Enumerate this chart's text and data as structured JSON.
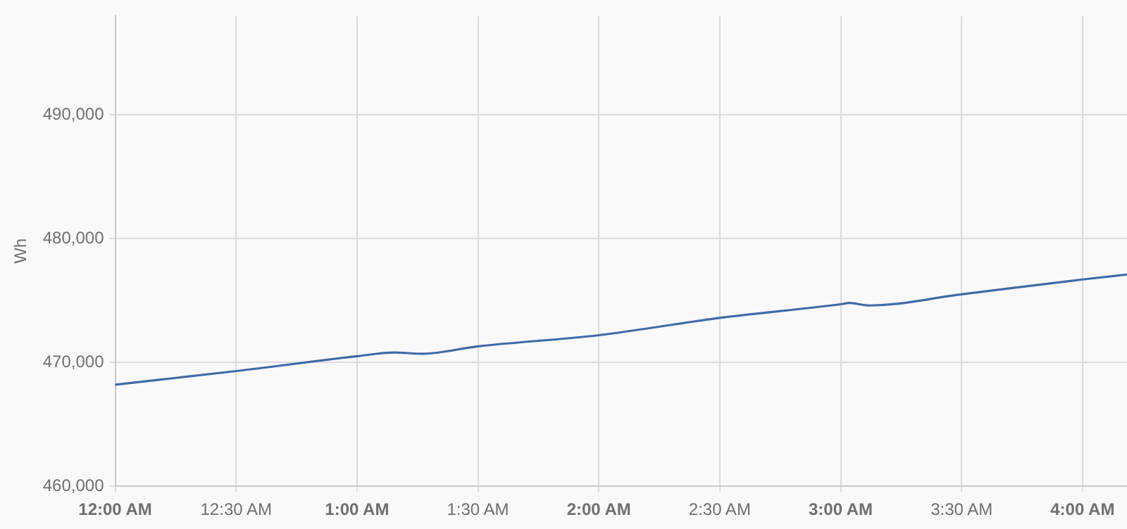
{
  "chart_data": {
    "type": "line",
    "ylabel": "Wh",
    "xlim": [
      0,
      4.184
    ],
    "ylim": [
      460000,
      498000
    ],
    "xticks": [
      {
        "value": 0,
        "label": "12:00 AM"
      },
      {
        "value": 0.5,
        "label": "12:30 AM"
      },
      {
        "value": 1,
        "label": "1:00 AM"
      },
      {
        "value": 1.5,
        "label": "1:30 AM"
      },
      {
        "value": 2,
        "label": "2:00 AM"
      },
      {
        "value": 2.5,
        "label": "2:30 AM"
      },
      {
        "value": 3,
        "label": "3:00 AM"
      },
      {
        "value": 3.5,
        "label": "3:30 AM"
      },
      {
        "value": 4,
        "label": "4:00 AM"
      }
    ],
    "yticks": [
      {
        "value": 460000,
        "label": "460,000"
      },
      {
        "value": 470000,
        "label": "470,000"
      },
      {
        "value": 480000,
        "label": "480,000"
      },
      {
        "value": 490000,
        "label": "490,000"
      }
    ],
    "grid": true,
    "legend": false,
    "marker": "none",
    "line_style": "solid",
    "series": [
      {
        "color": "#3f6ba8",
        "x": [
          0,
          0.5,
          1,
          1.154,
          1.27,
          1.5,
          2,
          2.5,
          3,
          3.036,
          3.118,
          3.5,
          4,
          4.184
        ],
        "values": [
          468200,
          469300,
          470500,
          470800,
          470700,
          471300,
          472200,
          473600,
          474700,
          474800,
          474600,
          475500,
          476700,
          477100
        ]
      }
    ]
  }
}
